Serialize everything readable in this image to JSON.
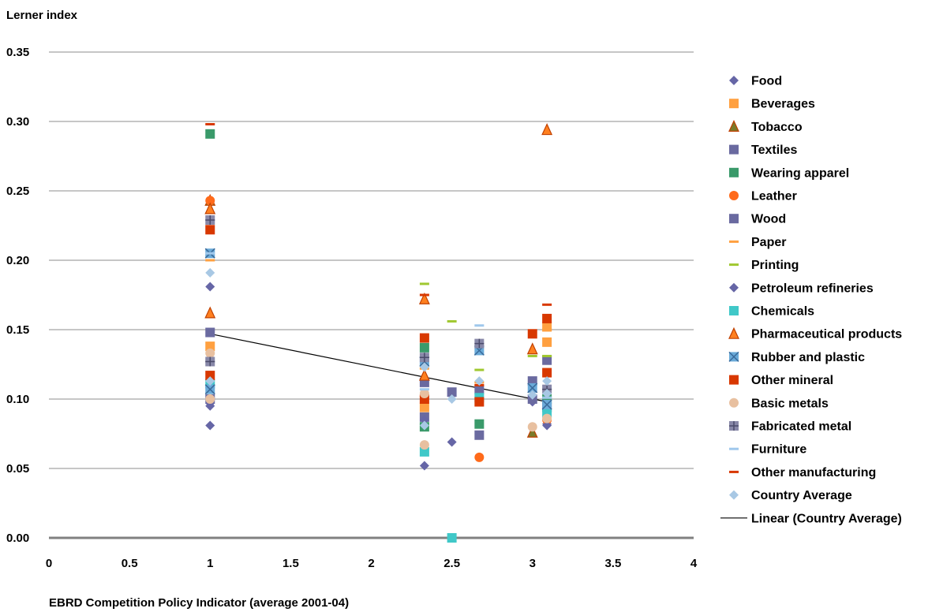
{
  "chart_data": {
    "type": "scatter",
    "ylabel": "Lerner index",
    "xlabel": "EBRD Competition Policy Indicator (average 2001-04)",
    "xlim": [
      0,
      4
    ],
    "ylim": [
      0,
      0.35
    ],
    "x_ticks": [
      "0",
      "0.5",
      "1",
      "1.5",
      "2",
      "2.5",
      "3",
      "3.5",
      "4"
    ],
    "y_ticks": [
      "0.00",
      "0.05",
      "0.10",
      "0.15",
      "0.20",
      "0.25",
      "0.30",
      "0.35"
    ],
    "grid": "horizontal",
    "legend_position": "right",
    "series": [
      {
        "name": "Food",
        "marker": "diamond",
        "color": "#6666a6",
        "points": [
          [
            1,
            0.181
          ],
          [
            1,
            0.095
          ],
          [
            1,
            0.081
          ],
          [
            2.33,
            0.052
          ],
          [
            2.5,
            0.069
          ],
          [
            3,
            0.098
          ],
          [
            3.09,
            0.082
          ]
        ]
      },
      {
        "name": "Beverages",
        "marker": "square",
        "color": "#ffa040",
        "points": [
          [
            1,
            0.138
          ],
          [
            2.33,
            0.094
          ],
          [
            3.09,
            0.141
          ],
          [
            3.09,
            0.152
          ]
        ]
      },
      {
        "name": "Tobacco",
        "marker": "triangle",
        "color": "#7a7a2a",
        "points": [
          [
            1,
            0.243
          ],
          [
            3,
            0.076
          ]
        ]
      },
      {
        "name": "Textiles",
        "marker": "square",
        "color": "#6a6aa0",
        "points": [
          [
            1,
            0.148
          ],
          [
            2.33,
            0.087
          ],
          [
            2.5,
            0.105
          ],
          [
            2.67,
            0.074
          ],
          [
            3,
            0.113
          ],
          [
            3.09,
            0.128
          ]
        ]
      },
      {
        "name": "Wearing apparel",
        "marker": "square",
        "color": "#3a9a6a",
        "points": [
          [
            1,
            0.291
          ],
          [
            2.33,
            0.137
          ],
          [
            2.33,
            0.08
          ],
          [
            2.67,
            0.082
          ],
          [
            3.09,
            0.1
          ]
        ]
      },
      {
        "name": "Leather",
        "marker": "circle",
        "color": "#ff6a1a",
        "points": [
          [
            1,
            0.243
          ],
          [
            2.33,
            0.102
          ],
          [
            2.67,
            0.058
          ],
          [
            3.09,
            0.085
          ]
        ]
      },
      {
        "name": "Wood",
        "marker": "square",
        "color": "#6a6aa0",
        "points": [
          [
            1,
            0.1
          ],
          [
            2.33,
            0.112
          ],
          [
            2.67,
            0.107
          ],
          [
            3,
            0.1
          ],
          [
            3.09,
            0.094
          ]
        ]
      },
      {
        "name": "Paper",
        "marker": "dash",
        "color": "#ffa040",
        "points": [
          [
            1,
            0.2
          ],
          [
            2.33,
            0.122
          ],
          [
            2.67,
            0.112
          ],
          [
            3.09,
            0.15
          ]
        ]
      },
      {
        "name": "Printing",
        "marker": "dash",
        "color": "#a0c830",
        "points": [
          [
            2.33,
            0.183
          ],
          [
            2.5,
            0.156
          ],
          [
            2.67,
            0.121
          ],
          [
            3,
            0.131
          ],
          [
            3.09,
            0.131
          ]
        ]
      },
      {
        "name": "Petroleum refineries",
        "marker": "diamond",
        "color": "#6666a6",
        "points": [
          [
            1,
            0.097
          ],
          [
            2.33,
            0.085
          ],
          [
            3.09,
            0.081
          ]
        ]
      },
      {
        "name": "Chemicals",
        "marker": "square",
        "color": "#40c8c8",
        "points": [
          [
            1,
            0.111
          ],
          [
            2.33,
            0.062
          ],
          [
            2.5,
            0.0
          ],
          [
            2.67,
            0.101
          ],
          [
            3.09,
            0.09
          ]
        ]
      },
      {
        "name": "Pharmaceutical products",
        "marker": "triangle",
        "color": "#ff8020",
        "points": [
          [
            1,
            0.237
          ],
          [
            1,
            0.162
          ],
          [
            2.33,
            0.172
          ],
          [
            2.33,
            0.117
          ],
          [
            3,
            0.136
          ],
          [
            3.09,
            0.294
          ]
        ]
      },
      {
        "name": "Rubber and plastic",
        "marker": "x-square",
        "color": "#6aaad8",
        "points": [
          [
            1,
            0.205
          ],
          [
            1,
            0.107
          ],
          [
            2.33,
            0.127
          ],
          [
            2.67,
            0.135
          ],
          [
            3,
            0.108
          ],
          [
            3.09,
            0.096
          ]
        ]
      },
      {
        "name": "Other mineral",
        "marker": "square",
        "color": "#d83800",
        "points": [
          [
            1,
            0.222
          ],
          [
            1,
            0.117
          ],
          [
            2.33,
            0.144
          ],
          [
            2.33,
            0.1
          ],
          [
            2.67,
            0.098
          ],
          [
            3,
            0.147
          ],
          [
            3.09,
            0.158
          ],
          [
            3.09,
            0.119
          ]
        ]
      },
      {
        "name": "Basic metals",
        "marker": "circle",
        "color": "#e8c0a0",
        "points": [
          [
            1,
            0.133
          ],
          [
            1,
            0.1
          ],
          [
            2.33,
            0.104
          ],
          [
            2.33,
            0.067
          ],
          [
            3,
            0.08
          ],
          [
            3.09,
            0.086
          ]
        ]
      },
      {
        "name": "Fabricated metal",
        "marker": "plus-square",
        "color": "#8888a8",
        "points": [
          [
            1,
            0.229
          ],
          [
            1,
            0.127
          ],
          [
            2.33,
            0.13
          ],
          [
            2.67,
            0.14
          ],
          [
            3.09,
            0.107
          ]
        ]
      },
      {
        "name": "Furniture",
        "marker": "dash",
        "color": "#a0c8ec",
        "points": [
          [
            1,
            0.205
          ],
          [
            2.33,
            0.107
          ],
          [
            2.67,
            0.153
          ],
          [
            3.09,
            0.101
          ]
        ]
      },
      {
        "name": "Other manufacturing",
        "marker": "dash",
        "color": "#d83800",
        "points": [
          [
            1,
            0.298
          ],
          [
            2.33,
            0.175
          ],
          [
            2.67,
            0.11
          ],
          [
            3.09,
            0.168
          ]
        ]
      },
      {
        "name": "Country Average",
        "marker": "diamond",
        "color": "#a8c8e4",
        "points": [
          [
            1,
            0.191
          ],
          [
            1,
            0.113
          ],
          [
            2.33,
            0.123
          ],
          [
            2.33,
            0.081
          ],
          [
            2.5,
            0.1
          ],
          [
            2.67,
            0.113
          ],
          [
            3,
            0.103
          ],
          [
            3.09,
            0.113
          ],
          [
            3.09,
            0.104
          ]
        ]
      }
    ],
    "trendline": {
      "name": "Linear (Country Average)",
      "color": "#000000",
      "x": [
        1,
        3.09
      ],
      "y": [
        0.147,
        0.098
      ]
    }
  }
}
